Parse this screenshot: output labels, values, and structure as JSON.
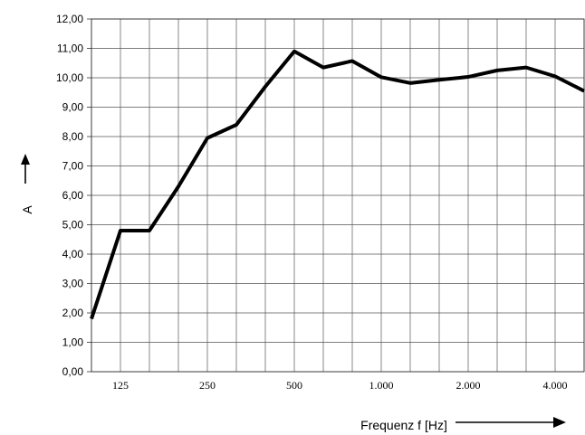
{
  "chart_data": {
    "type": "line",
    "title": "",
    "xlabel": "Frequenz f [Hz]",
    "ylabel": "A",
    "ylim": [
      0,
      12
    ],
    "y_ticks": [
      "0,00",
      "1,00",
      "2,00",
      "3,00",
      "4,00",
      "5,00",
      "6,00",
      "7,00",
      "8,00",
      "9,00",
      "10,00",
      "11,00",
      "12,00"
    ],
    "x_tick_labels": [
      "125",
      "250",
      "500",
      "1.000",
      "2.000",
      "4.000"
    ],
    "grid": true,
    "series": [
      {
        "x": [
          100,
          125,
          160,
          200,
          250,
          315,
          400,
          500,
          630,
          800,
          1000,
          1250,
          1600,
          2000,
          2500,
          3150,
          4000,
          5000
        ],
        "values": [
          1.8,
          4.8,
          4.8,
          6.3,
          7.95,
          8.4,
          9.7,
          10.9,
          10.35,
          10.57,
          10.02,
          9.82,
          9.93,
          10.03,
          10.25,
          10.35,
          10.05,
          9.55
        ]
      }
    ]
  }
}
